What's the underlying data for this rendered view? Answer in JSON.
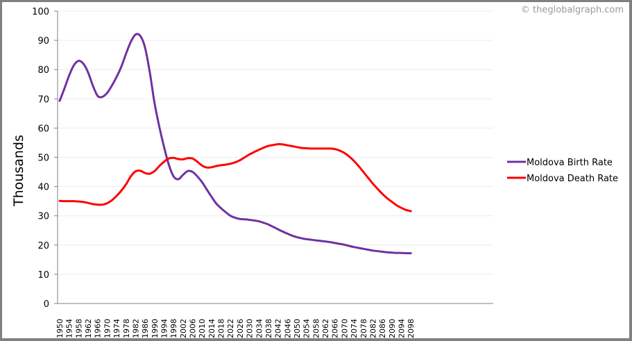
{
  "copyright": "© theglobalgraph.com",
  "chart_data": {
    "type": "line",
    "title": "",
    "xlabel": "",
    "ylabel": "Thousands",
    "ylim": [
      0,
      100
    ],
    "yticks": [
      0,
      10,
      20,
      30,
      40,
      50,
      60,
      70,
      80,
      90,
      100
    ],
    "grid": true,
    "legend_position": "right",
    "x_tick_labels": [
      "1950",
      "1954",
      "1958",
      "1962",
      "1966",
      "1970",
      "1974",
      "1978",
      "1982",
      "1986",
      "1990",
      "1994",
      "1998",
      "2002",
      "2006",
      "2010",
      "2014",
      "2018",
      "2022",
      "2026",
      "2030",
      "2034",
      "2038",
      "2042",
      "2046",
      "2050",
      "2054",
      "2058",
      "2062",
      "2066",
      "2070",
      "2074",
      "2078",
      "2082",
      "2086",
      "2090",
      "2094",
      "2098"
    ],
    "x": [
      1950,
      1952,
      1954,
      1956,
      1958,
      1960,
      1962,
      1964,
      1966,
      1968,
      1970,
      1972,
      1974,
      1976,
      1978,
      1980,
      1982,
      1984,
      1986,
      1988,
      1990,
      1992,
      1994,
      1996,
      1998,
      2000,
      2002,
      2004,
      2006,
      2008,
      2010,
      2012,
      2014,
      2016,
      2018,
      2020,
      2022,
      2024,
      2026,
      2028,
      2030,
      2032,
      2034,
      2036,
      2038,
      2040,
      2042,
      2044,
      2046,
      2048,
      2050,
      2052,
      2054,
      2056,
      2058,
      2060,
      2062,
      2064,
      2066,
      2068,
      2070,
      2072,
      2074,
      2076,
      2078,
      2080,
      2082,
      2084,
      2086,
      2088,
      2090,
      2092,
      2094,
      2096,
      2098
    ],
    "series": [
      {
        "name": "Moldova Birth Rate",
        "color": "#7030a0",
        "values": [
          69.3,
          73.5,
          78.0,
          81.5,
          83.0,
          82.0,
          79.0,
          74.5,
          71.0,
          70.7,
          72.0,
          74.5,
          77.5,
          81.0,
          85.5,
          89.5,
          92.0,
          91.5,
          87.5,
          79.0,
          68.5,
          60.5,
          53.5,
          47.5,
          43.5,
          42.5,
          44.0,
          45.3,
          45.0,
          43.5,
          41.5,
          39.0,
          36.5,
          34.2,
          32.6,
          31.2,
          30.0,
          29.3,
          28.9,
          28.8,
          28.6,
          28.4,
          28.1,
          27.6,
          27.0,
          26.2,
          25.4,
          24.6,
          23.9,
          23.2,
          22.7,
          22.3,
          22.0,
          21.8,
          21.6,
          21.4,
          21.2,
          21.0,
          20.7,
          20.4,
          20.1,
          19.7,
          19.3,
          19.0,
          18.7,
          18.4,
          18.1,
          17.9,
          17.7,
          17.5,
          17.4,
          17.3,
          17.3,
          17.2,
          17.2
        ]
      },
      {
        "name": "Moldova Death Rate",
        "color": "#ff0000",
        "values": [
          35.1,
          35.0,
          35.0,
          35.0,
          34.9,
          34.7,
          34.4,
          34.0,
          33.8,
          33.8,
          34.3,
          35.3,
          36.8,
          38.6,
          40.8,
          43.5,
          45.2,
          45.4,
          44.6,
          44.4,
          45.3,
          47.0,
          48.5,
          49.6,
          49.8,
          49.4,
          49.3,
          49.7,
          49.6,
          48.5,
          47.2,
          46.5,
          46.6,
          47.0,
          47.3,
          47.5,
          47.8,
          48.3,
          49.0,
          50.0,
          51.0,
          51.8,
          52.6,
          53.3,
          53.9,
          54.2,
          54.5,
          54.4,
          54.1,
          53.8,
          53.5,
          53.2,
          53.1,
          53.0,
          53.0,
          53.0,
          53.0,
          53.0,
          52.8,
          52.3,
          51.5,
          50.3,
          48.8,
          47.0,
          45.0,
          43.0,
          41.0,
          39.2,
          37.5,
          36.0,
          34.8,
          33.6,
          32.7,
          32.0,
          31.6
        ]
      }
    ]
  }
}
